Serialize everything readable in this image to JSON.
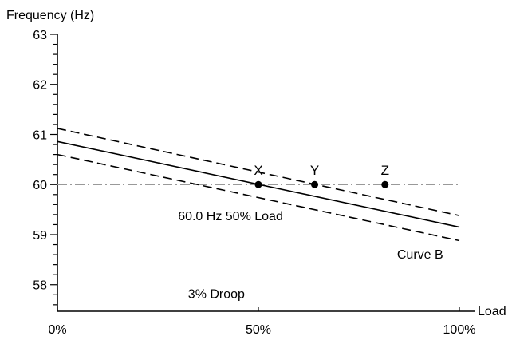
{
  "chart_data": {
    "type": "line",
    "ylabel": "Frequency (Hz)",
    "xlabel": "Load",
    "ylim": [
      57.47,
      63
    ],
    "xlim": [
      0,
      100
    ],
    "grid": false,
    "y_ticks": [
      {
        "value": 58,
        "label": "58"
      },
      {
        "value": 59,
        "label": "59"
      },
      {
        "value": 60,
        "label": "60"
      },
      {
        "value": 61,
        "label": "61"
      },
      {
        "value": 62,
        "label": "62"
      },
      {
        "value": 63,
        "label": "63"
      }
    ],
    "y_minor_step": 0.2,
    "x_ticks": [
      {
        "value": 0,
        "label": "0%"
      },
      {
        "value": 50,
        "label": "50%"
      },
      {
        "value": 100,
        "label": "100%"
      }
    ],
    "series": [
      {
        "style": "solid",
        "x": [
          0,
          100
        ],
        "y": [
          60.86,
          59.15
        ]
      },
      {
        "style": "dashed",
        "x": [
          0,
          100
        ],
        "y": [
          61.12,
          59.38
        ]
      },
      {
        "style": "dashed",
        "x": [
          0,
          100
        ],
        "y": [
          60.6,
          58.88
        ]
      }
    ],
    "reference_line": {
      "style": "dashdot",
      "y": 60,
      "color": "#999999"
    },
    "points": [
      {
        "label": "X",
        "x": 50,
        "y": 60
      },
      {
        "label": "Y",
        "x": 64,
        "y": 60
      },
      {
        "label": "Z",
        "x": 81.5,
        "y": 60
      }
    ],
    "annotations": [
      {
        "text": "60.0 Hz 50% Load",
        "x": 30,
        "y": 59.38
      },
      {
        "text": "Curve B",
        "x": 84.5,
        "y": 58.62
      },
      {
        "text": "3% Droop",
        "x": 32.5,
        "y": 57.83
      }
    ]
  }
}
